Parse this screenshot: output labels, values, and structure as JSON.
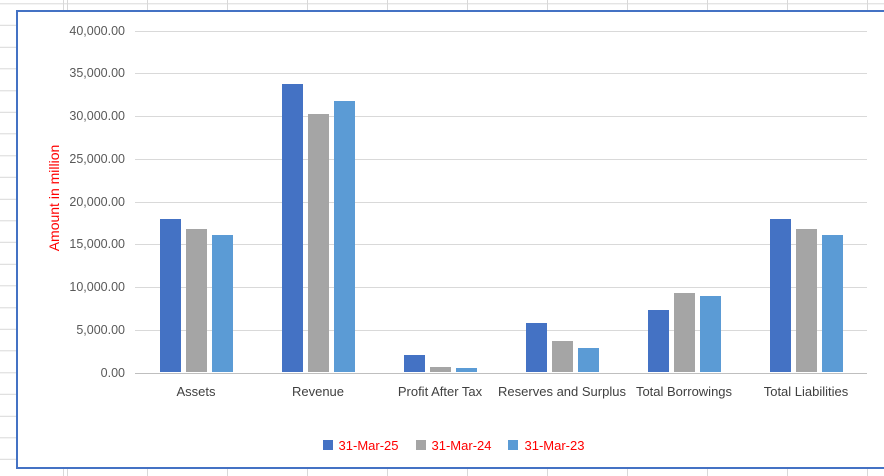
{
  "chart_data": {
    "type": "bar",
    "title": "",
    "xlabel": "",
    "ylabel": "Amount in million",
    "ylim": [
      0,
      40000
    ],
    "ytick_step": 5000,
    "y_tick_labels": [
      "0.00",
      "5,000.00",
      "10,000.00",
      "15,000.00",
      "20,000.00",
      "25,000.00",
      "30,000.00",
      "35,000.00",
      "40,000.00"
    ],
    "grid": true,
    "legend_position": "bottom",
    "categories": [
      "Assets",
      "Revenue",
      "Profit After Tax",
      "Reserves and Surplus",
      "Total Borrowings",
      "Total Liabilities"
    ],
    "series": [
      {
        "name": "31-Mar-25",
        "color": "#4472C4",
        "values": [
          18000,
          33800,
          2000,
          5800,
          7350,
          18000
        ]
      },
      {
        "name": "31-Mar-24",
        "color": "#A5A5A5",
        "values": [
          16800,
          30200,
          700,
          3650,
          9350,
          16800
        ]
      },
      {
        "name": "31-Mar-23",
        "color": "#5B9BD5",
        "values": [
          16100,
          31700,
          500,
          2900,
          8900,
          16100
        ]
      }
    ]
  },
  "style": {
    "axis_title_color": "#FF0000",
    "legend_text_color": "#FF0000",
    "chart_border_color": "#4472C4",
    "gridline_color": "#D9D9D9",
    "axis_line_color": "#BFBFBF",
    "tick_label_color": "#595959",
    "category_label_color": "#404040",
    "spreadsheet_gridline_color": "#D8D8D8"
  }
}
